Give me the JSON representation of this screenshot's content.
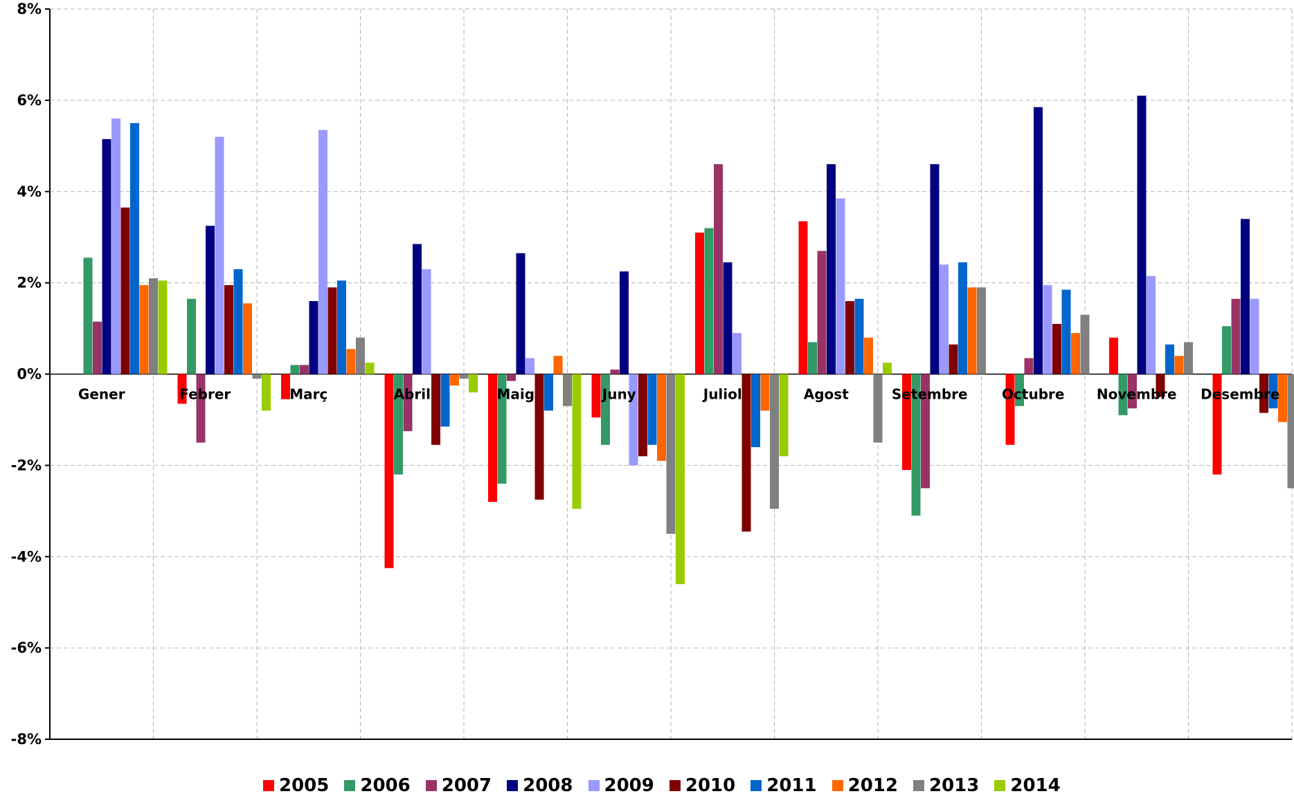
{
  "chart_data": {
    "type": "bar",
    "title": "",
    "xlabel": "",
    "ylabel": "",
    "ylim": [
      -8,
      8
    ],
    "y_ticks": [
      "8%",
      "6%",
      "4%",
      "2%",
      "0%",
      "-2%",
      "-4%",
      "-6%",
      "-8%"
    ],
    "y_tick_values": [
      8,
      6,
      4,
      2,
      0,
      -2,
      -4,
      -6,
      -8
    ],
    "grid": true,
    "legend_position": "bottom",
    "categories": [
      "Gener",
      "Febrer",
      "Març",
      "Abril",
      "Maig",
      "Juny",
      "Juliol",
      "Agost",
      "Setembre",
      "Octubre",
      "Novembre",
      "Desembre"
    ],
    "series": [
      {
        "name": "2005",
        "color": "#ff0000",
        "values": [
          0,
          -0.65,
          -0.55,
          -4.25,
          -2.8,
          -0.95,
          3.1,
          3.35,
          -2.1,
          -1.55,
          0.8,
          -2.2
        ]
      },
      {
        "name": "2006",
        "color": "#339966",
        "values": [
          2.55,
          1.65,
          0.2,
          -2.2,
          -2.4,
          -1.55,
          3.2,
          0.7,
          -3.1,
          -0.7,
          -0.9,
          1.05
        ]
      },
      {
        "name": "2007",
        "color": "#993366",
        "values": [
          1.15,
          -1.5,
          0.2,
          -1.25,
          -0.15,
          0.1,
          4.6,
          2.7,
          -2.5,
          0.35,
          -0.75,
          1.65
        ]
      },
      {
        "name": "2008",
        "color": "#000080",
        "values": [
          5.15,
          3.25,
          1.6,
          2.85,
          2.65,
          2.25,
          2.45,
          4.6,
          4.6,
          5.85,
          6.1,
          3.4
        ]
      },
      {
        "name": "2009",
        "color": "#9999ff",
        "values": [
          5.6,
          5.2,
          5.35,
          2.3,
          0.35,
          -2.0,
          0.9,
          3.85,
          2.4,
          1.95,
          2.15,
          1.65
        ]
      },
      {
        "name": "2010",
        "color": "#800000",
        "values": [
          3.65,
          1.95,
          1.9,
          -1.55,
          -2.75,
          -1.8,
          -3.45,
          1.6,
          0.65,
          1.1,
          -0.5,
          -0.85
        ]
      },
      {
        "name": "2011",
        "color": "#0066cc",
        "values": [
          5.5,
          2.3,
          2.05,
          -1.15,
          -0.8,
          -1.55,
          -1.6,
          1.65,
          2.45,
          1.85,
          0.65,
          -0.75
        ]
      },
      {
        "name": "2012",
        "color": "#ff6600",
        "values": [
          1.95,
          1.55,
          0.55,
          -0.25,
          0.4,
          -1.9,
          -0.8,
          0.8,
          1.9,
          0.9,
          0.4,
          -1.05
        ]
      },
      {
        "name": "2013",
        "color": "#808080",
        "values": [
          2.1,
          -0.1,
          0.8,
          -0.1,
          -0.7,
          -3.5,
          -2.95,
          -1.5,
          1.9,
          1.3,
          0.7,
          -2.5
        ]
      },
      {
        "name": "2014",
        "color": "#99cc00",
        "values": [
          2.05,
          -0.8,
          0.25,
          -0.4,
          -2.95,
          -4.6,
          -1.8,
          0.25,
          0,
          0,
          0,
          0
        ]
      }
    ]
  }
}
